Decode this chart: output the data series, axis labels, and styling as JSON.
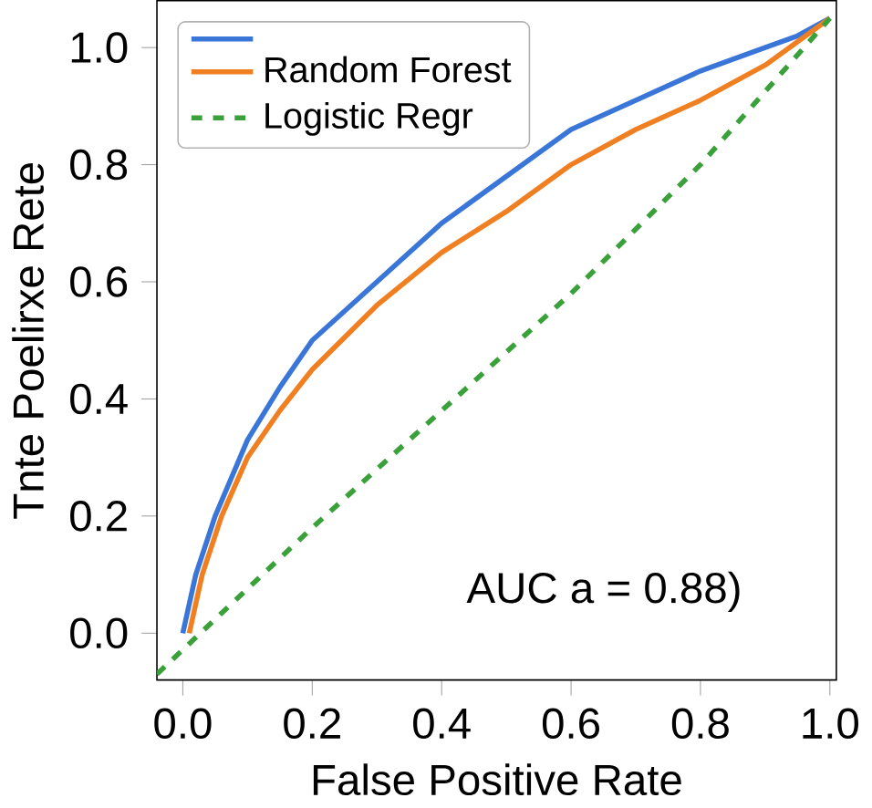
{
  "chart_data": {
    "type": "line",
    "xlabel": "False Positive Rate",
    "ylabel": "Tnte Poelirxe Rete",
    "xlim": [
      -0.04,
      1.01
    ],
    "ylim": [
      -0.08,
      1.08
    ],
    "xticks": [
      {
        "value": 0,
        "label": "0.0"
      },
      0.2,
      0.4,
      0.6,
      0.8,
      {
        "value": 1,
        "label": "1.0"
      }
    ],
    "yticks": [
      {
        "value": 0,
        "label": "0.0"
      },
      0.2,
      0.4,
      0.6,
      0.8,
      {
        "value": 1,
        "label": "1.0"
      }
    ],
    "legend": "top left",
    "grid": false,
    "annotations": [
      "AUC a = 0.88)"
    ],
    "series": [
      {
        "color": "#3a75d8",
        "line_style": "solid",
        "x": [
          0.0,
          0.02,
          0.05,
          0.1,
          0.15,
          0.2,
          0.3,
          0.4,
          0.5,
          0.6,
          0.7,
          0.8,
          0.9,
          0.95,
          1.0
        ],
        "values": [
          0.0,
          0.1,
          0.2,
          0.33,
          0.42,
          0.5,
          0.6,
          0.7,
          0.78,
          0.86,
          0.91,
          0.96,
          1.0,
          1.02,
          1.05
        ]
      },
      {
        "name": "Random Forest",
        "color": "#f07f22",
        "line_style": "solid",
        "x": [
          0.01,
          0.03,
          0.06,
          0.1,
          0.15,
          0.2,
          0.3,
          0.4,
          0.5,
          0.6,
          0.7,
          0.8,
          0.9,
          0.95,
          1.0
        ],
        "values": [
          0.0,
          0.1,
          0.2,
          0.3,
          0.38,
          0.45,
          0.56,
          0.65,
          0.72,
          0.8,
          0.86,
          0.91,
          0.97,
          1.01,
          1.05
        ]
      },
      {
        "name": "Logistic Regr",
        "color": "#3aa03a",
        "line_style": "dashed",
        "x": [
          -0.04,
          0.2,
          0.4,
          0.6,
          0.8,
          1.0
        ],
        "values": [
          -0.07,
          0.18,
          0.38,
          0.58,
          0.8,
          1.05
        ]
      }
    ]
  }
}
